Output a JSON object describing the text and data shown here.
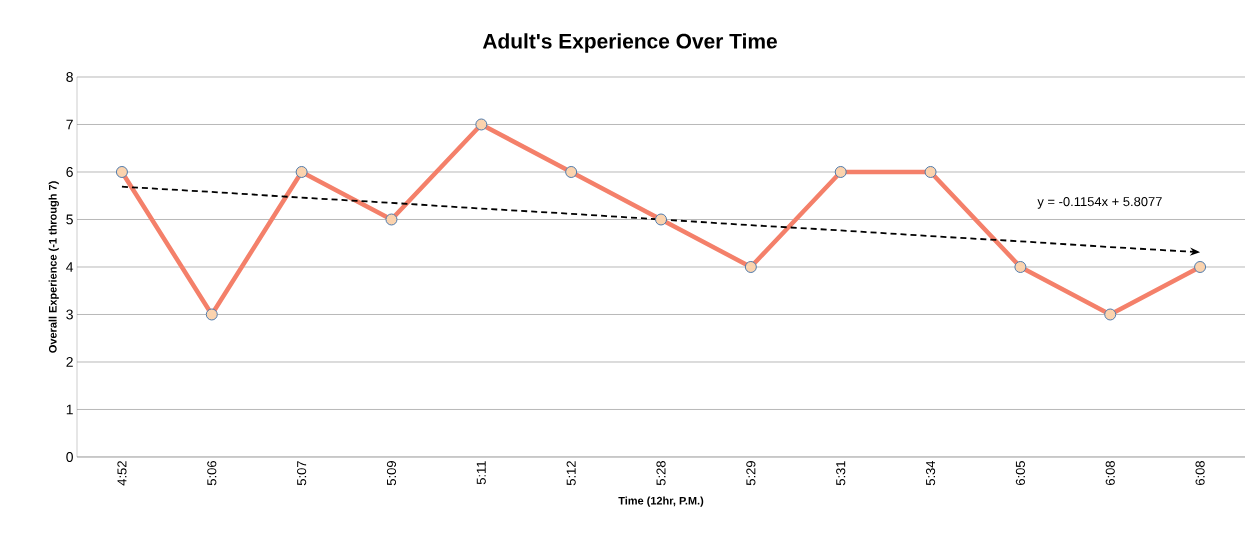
{
  "chart_data": {
    "type": "line",
    "title": "Adult's Experience Over Time",
    "xlabel": "Time (12hr, P.M.)",
    "ylabel": "Overall Experience (-1 through 7)",
    "categories": [
      "4:52",
      "5:06",
      "5:07",
      "5:09",
      "5:11",
      "5:12",
      "5:28",
      "5:29",
      "5:31",
      "5:34",
      "6:05",
      "6:08",
      "6:08"
    ],
    "series": [
      {
        "color": "#f4806a",
        "values": [
          6,
          3,
          6,
          5,
          7,
          6,
          5,
          4,
          6,
          6,
          4,
          3,
          4
        ],
        "marker": "circle",
        "line_style": "solid"
      },
      {
        "type": "line",
        "color": "#000000",
        "values": [
          5.69,
          5.58,
          5.46,
          5.35,
          5.23,
          5.12,
          5,
          4.88,
          4.77,
          4.65,
          4.54,
          4.42,
          4.31
        ],
        "marker": "none",
        "line_style": "dashed"
      }
    ],
    "annotations": [
      "y = -0.1154x + 5.8077"
    ],
    "ylim": [
      0,
      8
    ],
    "yticks": [
      0,
      1,
      2,
      3,
      4,
      5,
      6,
      7,
      8
    ],
    "grid": "y"
  }
}
